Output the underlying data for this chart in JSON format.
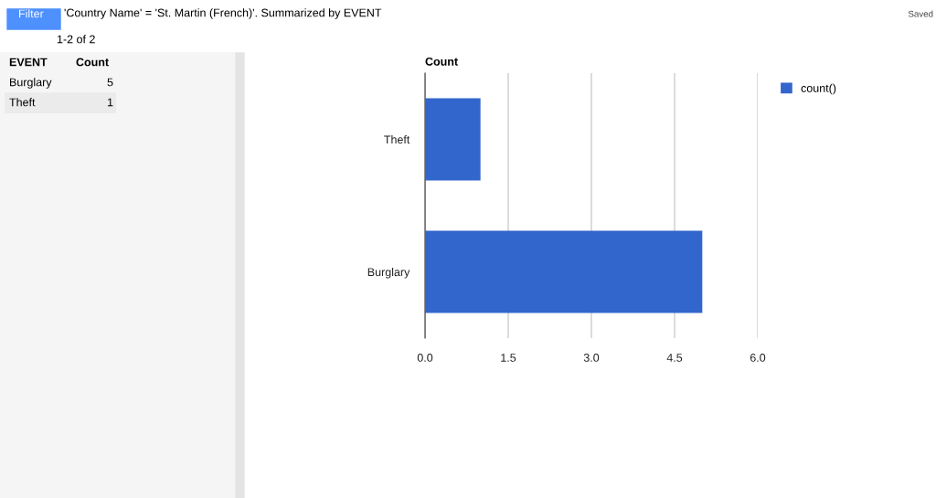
{
  "chart_data": [
    {
      "type": "other",
      "categories": [
        "Burglary",
        "Theft"
      ],
      "values": [
        5,
        1
      ],
      "data_labels": true,
      "annotations": [
        "EVENT",
        "Count"
      ]
    },
    {
      "type": "bar",
      "orientation": "horizontal",
      "title": "Count",
      "categories": [
        "Theft",
        "Burglary"
      ],
      "series": [
        {
          "name": "count()",
          "color": "#3366cc",
          "values": [
            1,
            5
          ]
        }
      ],
      "xlim": [
        0,
        6
      ],
      "xticks": [
        {
          "value": 0,
          "label": "0.0"
        },
        {
          "value": 1.5,
          "label": "1.5"
        },
        {
          "value": 3,
          "label": "3.0"
        },
        {
          "value": 4.5,
          "label": "4.5"
        },
        {
          "value": 6,
          "label": "6.0"
        }
      ],
      "grid": "x",
      "legend": "top right",
      "annotations": [
        "Filter",
        "'Country Name' = 'St. Martin (French)'. Summarized by EVENT",
        "Saved",
        "1-2 of 2"
      ]
    }
  ]
}
